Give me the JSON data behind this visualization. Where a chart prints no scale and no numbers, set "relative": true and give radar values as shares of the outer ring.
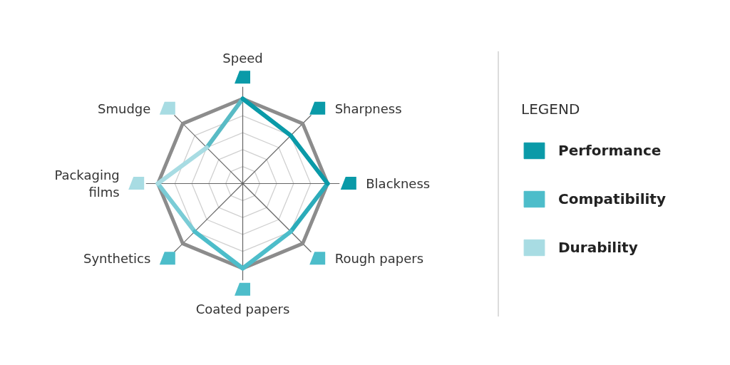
{
  "chart_data": {
    "type": "radar",
    "categories": [
      "Speed",
      "Sharpness",
      "Blackness",
      "Rough papers",
      "Coated papers",
      "Synthetics",
      "Packaging films",
      "Smudge"
    ],
    "relative": true,
    "grid": true,
    "legend": "right",
    "legend_title": "LEGEND",
    "series": [
      {
        "name": "Performance",
        "color": "#0a9aa8",
        "values": [
          1,
          0.8,
          1,
          null,
          null,
          null,
          null,
          null
        ]
      },
      {
        "name": "Compatibility",
        "color": "#4dbdca",
        "values": [
          null,
          null,
          null,
          0.8,
          1,
          0.8,
          null,
          null
        ]
      },
      {
        "name": "Durability",
        "color": "#a8dce3",
        "values": [
          null,
          null,
          null,
          null,
          null,
          null,
          1,
          0.6
        ]
      }
    ]
  }
}
